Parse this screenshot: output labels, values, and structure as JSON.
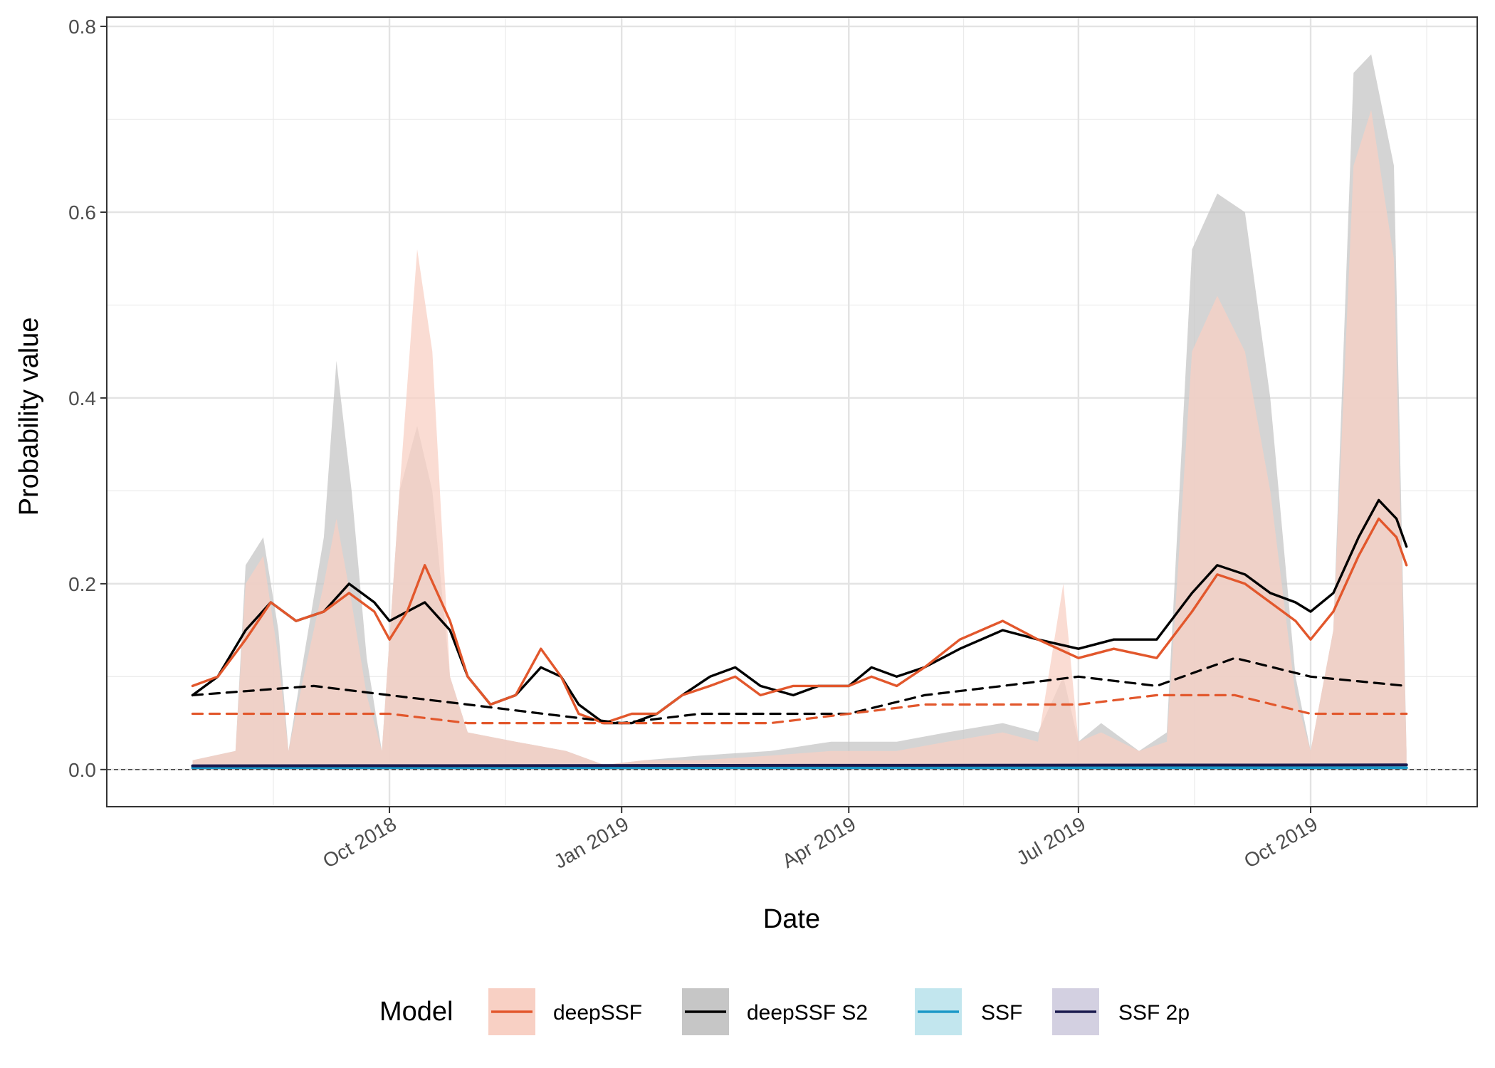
{
  "chart_data": {
    "type": "line",
    "xlabel": "Date",
    "ylabel": "Probability value",
    "ylim": [
      -0.04,
      0.81
    ],
    "xlim": [
      "2018-06-11",
      "2019-12-06"
    ],
    "x_ticks": [
      {
        "date": "2018-10-01",
        "label": "Oct 2018"
      },
      {
        "date": "2019-01-01",
        "label": "Jan 2019"
      },
      {
        "date": "2019-04-01",
        "label": "Apr 2019"
      },
      {
        "date": "2019-07-01",
        "label": "Jul 2019"
      },
      {
        "date": "2019-10-01",
        "label": "Oct 2019"
      }
    ],
    "y_ticks": [
      0.0,
      0.2,
      0.4,
      0.6,
      0.8
    ],
    "y_tick_labels": [
      "0.0",
      "0.2",
      "0.4",
      "0.6",
      "0.8"
    ],
    "grid": true,
    "reference_line": {
      "y": 0.0,
      "style": "dashed"
    },
    "legend": {
      "title": "Model",
      "position": "bottom",
      "entries": [
        {
          "name": "deepSSF",
          "line_color": "#e2572c",
          "fill_color": "#f8d0c4"
        },
        {
          "name": "deepSSF S2",
          "line_color": "#000000",
          "fill_color": "#c6c6c6"
        },
        {
          "name": "SSF",
          "line_color": "#1b98c7",
          "fill_color": "#c2e6ee"
        },
        {
          "name": "SSF 2p",
          "line_color": "#1a1a4e",
          "fill_color": "#d3d0e1"
        }
      ]
    },
    "series": [
      {
        "name": "deepSSF S2",
        "kind": "mean",
        "color": "#000000",
        "points": [
          [
            "2018-07-15",
            0.08
          ],
          [
            "2018-07-25",
            0.1
          ],
          [
            "2018-08-05",
            0.15
          ],
          [
            "2018-08-15",
            0.18
          ],
          [
            "2018-08-25",
            0.16
          ],
          [
            "2018-09-05",
            0.17
          ],
          [
            "2018-09-15",
            0.2
          ],
          [
            "2018-09-25",
            0.18
          ],
          [
            "2018-10-01",
            0.16
          ],
          [
            "2018-10-08",
            0.17
          ],
          [
            "2018-10-15",
            0.18
          ],
          [
            "2018-10-25",
            0.15
          ],
          [
            "2018-11-01",
            0.1
          ],
          [
            "2018-11-10",
            0.07
          ],
          [
            "2018-11-20",
            0.08
          ],
          [
            "2018-11-30",
            0.11
          ],
          [
            "2018-12-08",
            0.1
          ],
          [
            "2018-12-15",
            0.07
          ],
          [
            "2018-12-25",
            0.05
          ],
          [
            "2019-01-05",
            0.05
          ],
          [
            "2019-01-15",
            0.06
          ],
          [
            "2019-01-25",
            0.08
          ],
          [
            "2019-02-05",
            0.1
          ],
          [
            "2019-02-15",
            0.11
          ],
          [
            "2019-02-25",
            0.09
          ],
          [
            "2019-03-10",
            0.08
          ],
          [
            "2019-03-20",
            0.09
          ],
          [
            "2019-04-01",
            0.09
          ],
          [
            "2019-04-10",
            0.11
          ],
          [
            "2019-04-20",
            0.1
          ],
          [
            "2019-05-01",
            0.11
          ],
          [
            "2019-05-15",
            0.13
          ],
          [
            "2019-06-01",
            0.15
          ],
          [
            "2019-06-15",
            0.14
          ],
          [
            "2019-07-01",
            0.13
          ],
          [
            "2019-07-15",
            0.14
          ],
          [
            "2019-08-01",
            0.14
          ],
          [
            "2019-08-15",
            0.19
          ],
          [
            "2019-08-25",
            0.22
          ],
          [
            "2019-09-05",
            0.21
          ],
          [
            "2019-09-15",
            0.19
          ],
          [
            "2019-09-25",
            0.18
          ],
          [
            "2019-10-01",
            0.17
          ],
          [
            "2019-10-10",
            0.19
          ],
          [
            "2019-10-20",
            0.25
          ],
          [
            "2019-10-28",
            0.29
          ],
          [
            "2019-11-04",
            0.27
          ],
          [
            "2019-11-08",
            0.24
          ]
        ]
      },
      {
        "name": "deepSSF",
        "kind": "mean",
        "color": "#e2572c",
        "points": [
          [
            "2018-07-15",
            0.09
          ],
          [
            "2018-07-25",
            0.1
          ],
          [
            "2018-08-05",
            0.14
          ],
          [
            "2018-08-15",
            0.18
          ],
          [
            "2018-08-25",
            0.16
          ],
          [
            "2018-09-05",
            0.17
          ],
          [
            "2018-09-15",
            0.19
          ],
          [
            "2018-09-25",
            0.17
          ],
          [
            "2018-10-01",
            0.14
          ],
          [
            "2018-10-08",
            0.17
          ],
          [
            "2018-10-15",
            0.22
          ],
          [
            "2018-10-25",
            0.16
          ],
          [
            "2018-11-01",
            0.1
          ],
          [
            "2018-11-10",
            0.07
          ],
          [
            "2018-11-20",
            0.08
          ],
          [
            "2018-11-30",
            0.13
          ],
          [
            "2018-12-08",
            0.1
          ],
          [
            "2018-12-15",
            0.06
          ],
          [
            "2018-12-25",
            0.05
          ],
          [
            "2019-01-05",
            0.06
          ],
          [
            "2019-01-15",
            0.06
          ],
          [
            "2019-01-25",
            0.08
          ],
          [
            "2019-02-05",
            0.09
          ],
          [
            "2019-02-15",
            0.1
          ],
          [
            "2019-02-25",
            0.08
          ],
          [
            "2019-03-10",
            0.09
          ],
          [
            "2019-03-20",
            0.09
          ],
          [
            "2019-04-01",
            0.09
          ],
          [
            "2019-04-10",
            0.1
          ],
          [
            "2019-04-20",
            0.09
          ],
          [
            "2019-05-01",
            0.11
          ],
          [
            "2019-05-15",
            0.14
          ],
          [
            "2019-06-01",
            0.16
          ],
          [
            "2019-06-15",
            0.14
          ],
          [
            "2019-07-01",
            0.12
          ],
          [
            "2019-07-15",
            0.13
          ],
          [
            "2019-08-01",
            0.12
          ],
          [
            "2019-08-15",
            0.17
          ],
          [
            "2019-08-25",
            0.21
          ],
          [
            "2019-09-05",
            0.2
          ],
          [
            "2019-09-15",
            0.18
          ],
          [
            "2019-09-25",
            0.16
          ],
          [
            "2019-10-01",
            0.14
          ],
          [
            "2019-10-10",
            0.17
          ],
          [
            "2019-10-20",
            0.23
          ],
          [
            "2019-10-28",
            0.27
          ],
          [
            "2019-11-04",
            0.25
          ],
          [
            "2019-11-08",
            0.22
          ]
        ]
      },
      {
        "name": "deepSSF S2",
        "kind": "median",
        "color": "#000000",
        "points": [
          [
            "2018-07-15",
            0.08
          ],
          [
            "2018-09-01",
            0.09
          ],
          [
            "2018-10-01",
            0.08
          ],
          [
            "2018-11-01",
            0.07
          ],
          [
            "2018-12-01",
            0.06
          ],
          [
            "2019-01-01",
            0.05
          ],
          [
            "2019-02-01",
            0.06
          ],
          [
            "2019-03-01",
            0.06
          ],
          [
            "2019-04-01",
            0.06
          ],
          [
            "2019-05-01",
            0.08
          ],
          [
            "2019-06-01",
            0.09
          ],
          [
            "2019-07-01",
            0.1
          ],
          [
            "2019-08-01",
            0.09
          ],
          [
            "2019-09-01",
            0.12
          ],
          [
            "2019-10-01",
            0.1
          ],
          [
            "2019-11-08",
            0.09
          ]
        ]
      },
      {
        "name": "deepSSF",
        "kind": "median",
        "color": "#e2572c",
        "points": [
          [
            "2018-07-15",
            0.06
          ],
          [
            "2018-09-01",
            0.06
          ],
          [
            "2018-10-01",
            0.06
          ],
          [
            "2018-11-01",
            0.05
          ],
          [
            "2018-12-01",
            0.05
          ],
          [
            "2019-01-01",
            0.05
          ],
          [
            "2019-02-01",
            0.05
          ],
          [
            "2019-03-01",
            0.05
          ],
          [
            "2019-04-01",
            0.06
          ],
          [
            "2019-05-01",
            0.07
          ],
          [
            "2019-06-01",
            0.07
          ],
          [
            "2019-07-01",
            0.07
          ],
          [
            "2019-08-01",
            0.08
          ],
          [
            "2019-09-01",
            0.08
          ],
          [
            "2019-10-01",
            0.06
          ],
          [
            "2019-11-08",
            0.06
          ]
        ]
      },
      {
        "name": "SSF",
        "kind": "mean",
        "color": "#1b98c7",
        "points": [
          [
            "2018-07-15",
            0.002
          ],
          [
            "2019-11-08",
            0.002
          ]
        ]
      },
      {
        "name": "SSF 2p",
        "kind": "mean",
        "color": "#1a1a4e",
        "points": [
          [
            "2018-07-15",
            0.004
          ],
          [
            "2019-11-08",
            0.005
          ]
        ]
      }
    ],
    "bands": [
      {
        "name": "deepSSF S2",
        "color": "#c6c6c6",
        "points": [
          [
            "2018-07-15",
            0.01
          ],
          [
            "2018-08-01",
            0.02
          ],
          [
            "2018-08-05",
            0.22
          ],
          [
            "2018-08-12",
            0.25
          ],
          [
            "2018-08-18",
            0.15
          ],
          [
            "2018-08-22",
            0.02
          ],
          [
            "2018-08-28",
            0.12
          ],
          [
            "2018-09-05",
            0.25
          ],
          [
            "2018-09-10",
            0.44
          ],
          [
            "2018-09-16",
            0.3
          ],
          [
            "2018-09-22",
            0.12
          ],
          [
            "2018-09-28",
            0.02
          ],
          [
            "2018-10-05",
            0.3
          ],
          [
            "2018-10-12",
            0.37
          ],
          [
            "2018-10-18",
            0.3
          ],
          [
            "2018-10-25",
            0.1
          ],
          [
            "2018-11-01",
            0.04
          ],
          [
            "2018-11-20",
            0.03
          ],
          [
            "2018-12-10",
            0.02
          ],
          [
            "2018-12-25",
            0.005
          ],
          [
            "2019-01-10",
            0.01
          ],
          [
            "2019-02-01",
            0.015
          ],
          [
            "2019-03-01",
            0.02
          ],
          [
            "2019-03-25",
            0.03
          ],
          [
            "2019-04-05",
            0.03
          ],
          [
            "2019-04-20",
            0.03
          ],
          [
            "2019-05-10",
            0.04
          ],
          [
            "2019-06-01",
            0.05
          ],
          [
            "2019-06-15",
            0.04
          ],
          [
            "2019-06-25",
            0.1
          ],
          [
            "2019-07-01",
            0.03
          ],
          [
            "2019-07-10",
            0.05
          ],
          [
            "2019-07-25",
            0.02
          ],
          [
            "2019-08-05",
            0.04
          ],
          [
            "2019-08-15",
            0.56
          ],
          [
            "2019-08-25",
            0.62
          ],
          [
            "2019-09-05",
            0.6
          ],
          [
            "2019-09-15",
            0.4
          ],
          [
            "2019-09-25",
            0.1
          ],
          [
            "2019-10-01",
            0.02
          ],
          [
            "2019-10-10",
            0.15
          ],
          [
            "2019-10-18",
            0.75
          ],
          [
            "2019-10-25",
            0.77
          ],
          [
            "2019-11-03",
            0.65
          ],
          [
            "2019-11-08",
            0.02
          ]
        ]
      },
      {
        "name": "deepSSF",
        "color": "#f8d0c4",
        "points": [
          [
            "2018-07-15",
            0.01
          ],
          [
            "2018-08-01",
            0.02
          ],
          [
            "2018-08-05",
            0.2
          ],
          [
            "2018-08-12",
            0.23
          ],
          [
            "2018-08-18",
            0.12
          ],
          [
            "2018-08-22",
            0.02
          ],
          [
            "2018-08-28",
            0.1
          ],
          [
            "2018-09-05",
            0.2
          ],
          [
            "2018-09-10",
            0.27
          ],
          [
            "2018-09-16",
            0.18
          ],
          [
            "2018-09-22",
            0.08
          ],
          [
            "2018-09-28",
            0.02
          ],
          [
            "2018-10-05",
            0.3
          ],
          [
            "2018-10-12",
            0.56
          ],
          [
            "2018-10-18",
            0.45
          ],
          [
            "2018-10-25",
            0.1
          ],
          [
            "2018-11-01",
            0.04
          ],
          [
            "2018-11-20",
            0.03
          ],
          [
            "2018-12-10",
            0.02
          ],
          [
            "2018-12-25",
            0.005
          ],
          [
            "2019-01-10",
            0.01
          ],
          [
            "2019-02-01",
            0.01
          ],
          [
            "2019-03-01",
            0.015
          ],
          [
            "2019-03-25",
            0.02
          ],
          [
            "2019-04-05",
            0.02
          ],
          [
            "2019-04-20",
            0.02
          ],
          [
            "2019-05-10",
            0.03
          ],
          [
            "2019-06-01",
            0.04
          ],
          [
            "2019-06-15",
            0.03
          ],
          [
            "2019-06-25",
            0.2
          ],
          [
            "2019-07-01",
            0.03
          ],
          [
            "2019-07-10",
            0.04
          ],
          [
            "2019-07-25",
            0.02
          ],
          [
            "2019-08-05",
            0.03
          ],
          [
            "2019-08-15",
            0.45
          ],
          [
            "2019-08-25",
            0.51
          ],
          [
            "2019-09-05",
            0.45
          ],
          [
            "2019-09-15",
            0.3
          ],
          [
            "2019-09-25",
            0.08
          ],
          [
            "2019-10-01",
            0.02
          ],
          [
            "2019-10-10",
            0.15
          ],
          [
            "2019-10-18",
            0.65
          ],
          [
            "2019-10-25",
            0.71
          ],
          [
            "2019-11-03",
            0.55
          ],
          [
            "2019-11-08",
            0.02
          ]
        ]
      }
    ]
  }
}
